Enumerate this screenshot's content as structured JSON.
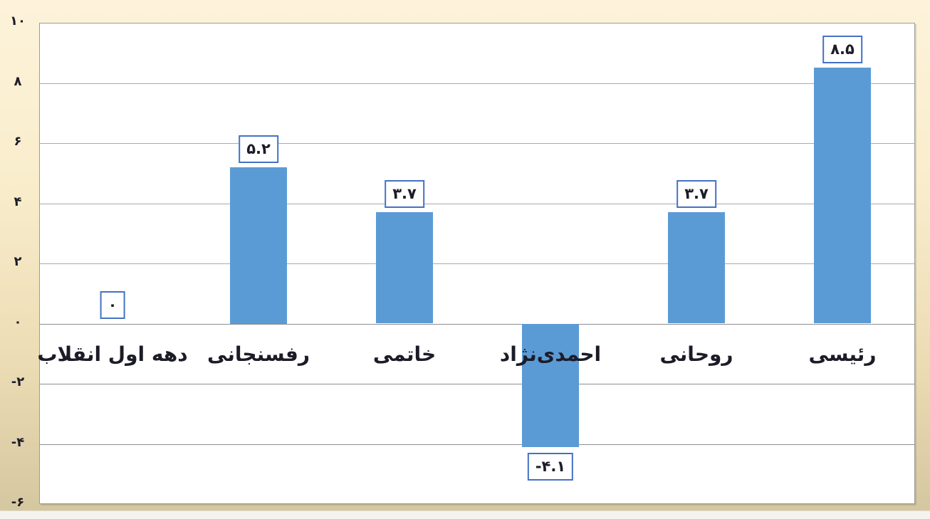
{
  "chart_data": {
    "type": "bar",
    "title": "",
    "xlabel": "",
    "ylabel": "",
    "direction": "rtl",
    "grid": true,
    "legend": false,
    "categories": [
      "دهه اول انقلاب",
      "رفسنجانی",
      "خاتمی",
      "احمدی‌نژاد",
      "روحانی",
      "رئیسی"
    ],
    "values": [
      0,
      5.2,
      3.7,
      -4.1,
      3.7,
      8.5
    ],
    "value_labels": [
      "۰",
      "۵.۲",
      "۳.۷",
      "-۴.۱",
      "۳.۷",
      "۸.۵"
    ],
    "ylim": [
      -6,
      10
    ],
    "y_ticks": [
      10,
      8,
      6,
      4,
      2,
      0,
      -2,
      -4,
      -6
    ],
    "y_tick_labels": [
      "۱۰",
      "۸",
      "۶",
      "۴",
      "۲",
      "۰",
      "-۲",
      "-۴",
      "-۶"
    ],
    "colors": {
      "bar": "#5B9BD5",
      "value_label_border": "#4472C4",
      "value_label_background": "#ffffff",
      "text": "#1c1c28",
      "gridline": "#aaaaaa",
      "plot_border": "#9b9b9b",
      "plot_background": "#ffffff",
      "canvas_background_top": "#fdf3da",
      "canvas_background_bottom": "#d5c7a0"
    }
  }
}
